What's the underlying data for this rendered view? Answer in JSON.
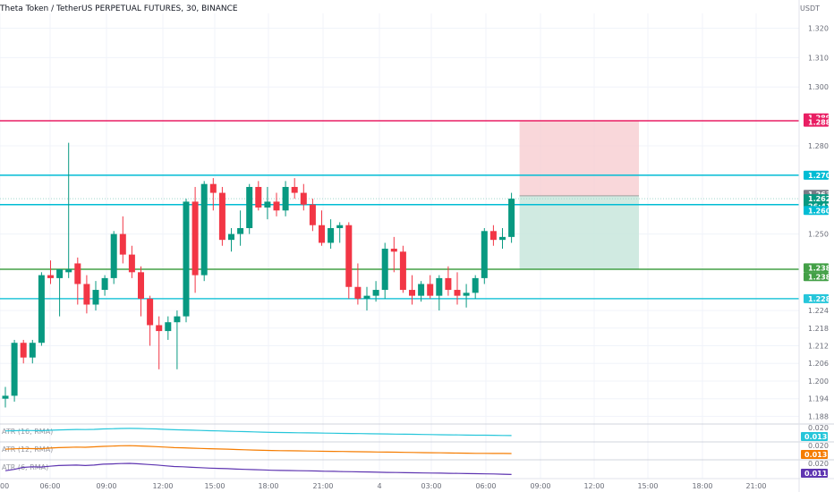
{
  "header": {
    "title": "Theta Token / TetherUS PERPETUAL FUTURES, 30, BINANCE",
    "currency": "USDT"
  },
  "price_axis": {
    "ticks": [
      "1.320",
      "1.310",
      "1.300",
      "1.280",
      "1.250",
      "1.224",
      "1.218",
      "1.212",
      "1.206",
      "1.200",
      "1.194",
      "1.188"
    ]
  },
  "time_axis": {
    "ticks": [
      "00",
      "06:00",
      "09:00",
      "12:00",
      "15:00",
      "18:00",
      "21:00",
      "4",
      "03:00",
      "06:00",
      "09:00",
      "12:00",
      "15:00",
      "18:00",
      "21:00"
    ]
  },
  "horizontal_lines": [
    {
      "name": "red-line",
      "price": 1.2885,
      "color": "#e91e63"
    },
    {
      "name": "cyan-line-top",
      "price": 1.27,
      "color": "#00bcd4"
    },
    {
      "name": "cyan-line-mid",
      "price": 1.26,
      "color": "#00bcd4"
    },
    {
      "name": "green-line",
      "price": 1.238,
      "color": "#43a047"
    },
    {
      "name": "cyan-line-bottom",
      "price": 1.228,
      "color": "#26c6da"
    }
  ],
  "price_tags": [
    {
      "name": "tag-1289",
      "text": "1.289",
      "color": "#e91e63",
      "price": 1.2895
    },
    {
      "name": "tag-1288",
      "text": "1.288",
      "color": "#e91e63",
      "price": 1.288
    },
    {
      "name": "tag-1270",
      "text": "1.270",
      "color": "#00bcd4",
      "price": 1.27
    },
    {
      "name": "tag-1263",
      "text": "1.263",
      "color": "#787b86",
      "price": 1.2635
    },
    {
      "name": "tag-1262",
      "text": "1.262",
      "color": "#089981",
      "price": 1.262
    },
    {
      "name": "tag-countdown",
      "text": "26:41",
      "color": "#089981",
      "price": 1.2595
    },
    {
      "name": "tag-1260",
      "text": "1.260",
      "color": "#00bcd4",
      "price": 1.258
    },
    {
      "name": "tag-1238a",
      "text": "1.238",
      "color": "#43a047",
      "price": 1.2385
    },
    {
      "name": "tag-1238b",
      "text": "1.238",
      "color": "#43a047",
      "price": 1.2355
    },
    {
      "name": "tag-1228",
      "text": "1.228",
      "color": "#26c6da",
      "price": 1.228
    }
  ],
  "position": {
    "entry": 1.263,
    "stop": 1.2885,
    "target": 1.238,
    "stop_color": "#f7c9cd",
    "target_color": "#c8e6dc"
  },
  "colors": {
    "up": "#089981",
    "down": "#f23645",
    "grid": "#f0f3fa"
  },
  "indicators": [
    {
      "name": "atr-16",
      "label": "ATR (16, RMA)",
      "value": "0.013",
      "scale": "0.020",
      "color": "#26c6da",
      "values": [
        0.0168,
        0.017,
        0.0172,
        0.0171,
        0.017,
        0.0173,
        0.0176,
        0.0178,
        0.018,
        0.0179,
        0.0181,
        0.0184,
        0.0186,
        0.0188,
        0.0189,
        0.0188,
        0.0186,
        0.0184,
        0.0181,
        0.0178,
        0.0176,
        0.0174,
        0.0172,
        0.017,
        0.0168,
        0.0166,
        0.0164,
        0.0162,
        0.016,
        0.0158,
        0.0156,
        0.0155,
        0.0154,
        0.0153,
        0.0152,
        0.0151,
        0.015,
        0.0149,
        0.0148,
        0.0147,
        0.0146,
        0.0145,
        0.0144,
        0.0143,
        0.0142,
        0.0141,
        0.014,
        0.0139,
        0.0138,
        0.0137,
        0.0136,
        0.0135,
        0.0134,
        0.0133,
        0.0133,
        0.0132,
        0.0131,
        0.013
      ]
    },
    {
      "name": "atr-12",
      "label": "ATR (12, RMA)",
      "value": "0.013",
      "scale": "0.020",
      "color": "#f57c00",
      "values": [
        0.0165,
        0.0168,
        0.0171,
        0.017,
        0.0169,
        0.0174,
        0.0178,
        0.018,
        0.0182,
        0.0181,
        0.0184,
        0.0188,
        0.019,
        0.0193,
        0.0194,
        0.0192,
        0.0189,
        0.0186,
        0.0182,
        0.0178,
        0.0176,
        0.0173,
        0.0171,
        0.0169,
        0.0167,
        0.0165,
        0.0162,
        0.016,
        0.0158,
        0.0156,
        0.0154,
        0.0153,
        0.0152,
        0.0151,
        0.015,
        0.0149,
        0.0148,
        0.0147,
        0.0146,
        0.0145,
        0.0144,
        0.0143,
        0.0142,
        0.0141,
        0.014,
        0.0139,
        0.0138,
        0.0137,
        0.0136,
        0.0135,
        0.0134,
        0.0133,
        0.0132,
        0.0131,
        0.0131,
        0.013,
        0.013,
        0.0129
      ]
    },
    {
      "name": "atr-6",
      "label": "ATR (6, RMA)",
      "value": "0.011",
      "scale": "0.020",
      "color": "#5e35b1",
      "values": [
        0.014,
        0.015,
        0.0165,
        0.017,
        0.0168,
        0.0174,
        0.018,
        0.0182,
        0.0183,
        0.018,
        0.0183,
        0.019,
        0.0192,
        0.0195,
        0.0196,
        0.0193,
        0.0188,
        0.0184,
        0.0178,
        0.0172,
        0.017,
        0.0166,
        0.0163,
        0.016,
        0.0158,
        0.0156,
        0.0152,
        0.015,
        0.0148,
        0.0146,
        0.0143,
        0.0142,
        0.0141,
        0.014,
        0.0139,
        0.0138,
        0.0136,
        0.0135,
        0.0133,
        0.0132,
        0.0131,
        0.013,
        0.0128,
        0.0127,
        0.0126,
        0.0125,
        0.0124,
        0.0123,
        0.0122,
        0.0121,
        0.012,
        0.0119,
        0.0118,
        0.0117,
        0.0116,
        0.0115,
        0.0113,
        0.0111
      ]
    }
  ],
  "chart_data": {
    "type": "candlestick",
    "title": "Theta Token / TetherUS PERPETUAL FUTURES, 30, BINANCE",
    "y_range": [
      1.186,
      1.325
    ],
    "candles": [
      [
        1.194,
        1.198,
        1.191,
        1.195
      ],
      [
        1.195,
        1.214,
        1.193,
        1.213
      ],
      [
        1.213,
        1.214,
        1.206,
        1.208
      ],
      [
        1.208,
        1.214,
        1.206,
        1.213
      ],
      [
        1.213,
        1.237,
        1.212,
        1.236
      ],
      [
        1.236,
        1.241,
        1.233,
        1.235
      ],
      [
        1.235,
        1.238,
        1.222,
        1.238
      ],
      [
        1.237,
        1.281,
        1.235,
        1.238
      ],
      [
        1.24,
        1.242,
        1.226,
        1.233
      ],
      [
        1.233,
        1.236,
        1.223,
        1.226
      ],
      [
        1.226,
        1.234,
        1.224,
        1.231
      ],
      [
        1.231,
        1.236,
        1.229,
        1.235
      ],
      [
        1.235,
        1.251,
        1.233,
        1.25
      ],
      [
        1.25,
        1.256,
        1.24,
        1.243
      ],
      [
        1.243,
        1.246,
        1.235,
        1.237
      ],
      [
        1.237,
        1.239,
        1.222,
        1.228
      ],
      [
        1.228,
        1.229,
        1.212,
        1.219
      ],
      [
        1.219,
        1.222,
        1.204,
        1.217
      ],
      [
        1.217,
        1.222,
        1.214,
        1.22
      ],
      [
        1.22,
        1.224,
        1.204,
        1.222
      ],
      [
        1.222,
        1.262,
        1.22,
        1.261
      ],
      [
        1.261,
        1.266,
        1.23,
        1.236
      ],
      [
        1.236,
        1.268,
        1.234,
        1.267
      ],
      [
        1.267,
        1.269,
        1.258,
        1.264
      ],
      [
        1.264,
        1.266,
        1.246,
        1.248
      ],
      [
        1.248,
        1.252,
        1.244,
        1.25
      ],
      [
        1.25,
        1.258,
        1.246,
        1.252
      ],
      [
        1.252,
        1.267,
        1.25,
        1.266
      ],
      [
        1.266,
        1.268,
        1.258,
        1.259
      ],
      [
        1.259,
        1.266,
        1.255,
        1.261
      ],
      [
        1.261,
        1.264,
        1.256,
        1.258
      ],
      [
        1.258,
        1.268,
        1.256,
        1.266
      ],
      [
        1.266,
        1.269,
        1.262,
        1.264
      ],
      [
        1.264,
        1.267,
        1.258,
        1.26
      ],
      [
        1.26,
        1.262,
        1.251,
        1.253
      ],
      [
        1.253,
        1.258,
        1.246,
        1.247
      ],
      [
        1.247,
        1.255,
        1.245,
        1.252
      ],
      [
        1.252,
        1.254,
        1.247,
        1.253
      ],
      [
        1.253,
        1.254,
        1.228,
        1.232
      ],
      [
        1.232,
        1.24,
        1.226,
        1.228
      ],
      [
        1.228,
        1.232,
        1.224,
        1.229
      ],
      [
        1.229,
        1.234,
        1.227,
        1.231
      ],
      [
        1.231,
        1.247,
        1.228,
        1.245
      ],
      [
        1.245,
        1.249,
        1.237,
        1.244
      ],
      [
        1.244,
        1.246,
        1.23,
        1.231
      ],
      [
        1.231,
        1.236,
        1.226,
        1.229
      ],
      [
        1.229,
        1.234,
        1.227,
        1.233
      ],
      [
        1.233,
        1.236,
        1.228,
        1.229
      ],
      [
        1.229,
        1.236,
        1.224,
        1.235
      ],
      [
        1.235,
        1.239,
        1.229,
        1.231
      ],
      [
        1.231,
        1.237,
        1.226,
        1.229
      ],
      [
        1.229,
        1.233,
        1.225,
        1.23
      ],
      [
        1.23,
        1.236,
        1.228,
        1.235
      ],
      [
        1.235,
        1.252,
        1.233,
        1.251
      ],
      [
        1.251,
        1.253,
        1.246,
        1.248
      ],
      [
        1.248,
        1.252,
        1.245,
        1.249
      ],
      [
        1.249,
        1.264,
        1.247,
        1.262
      ]
    ]
  }
}
